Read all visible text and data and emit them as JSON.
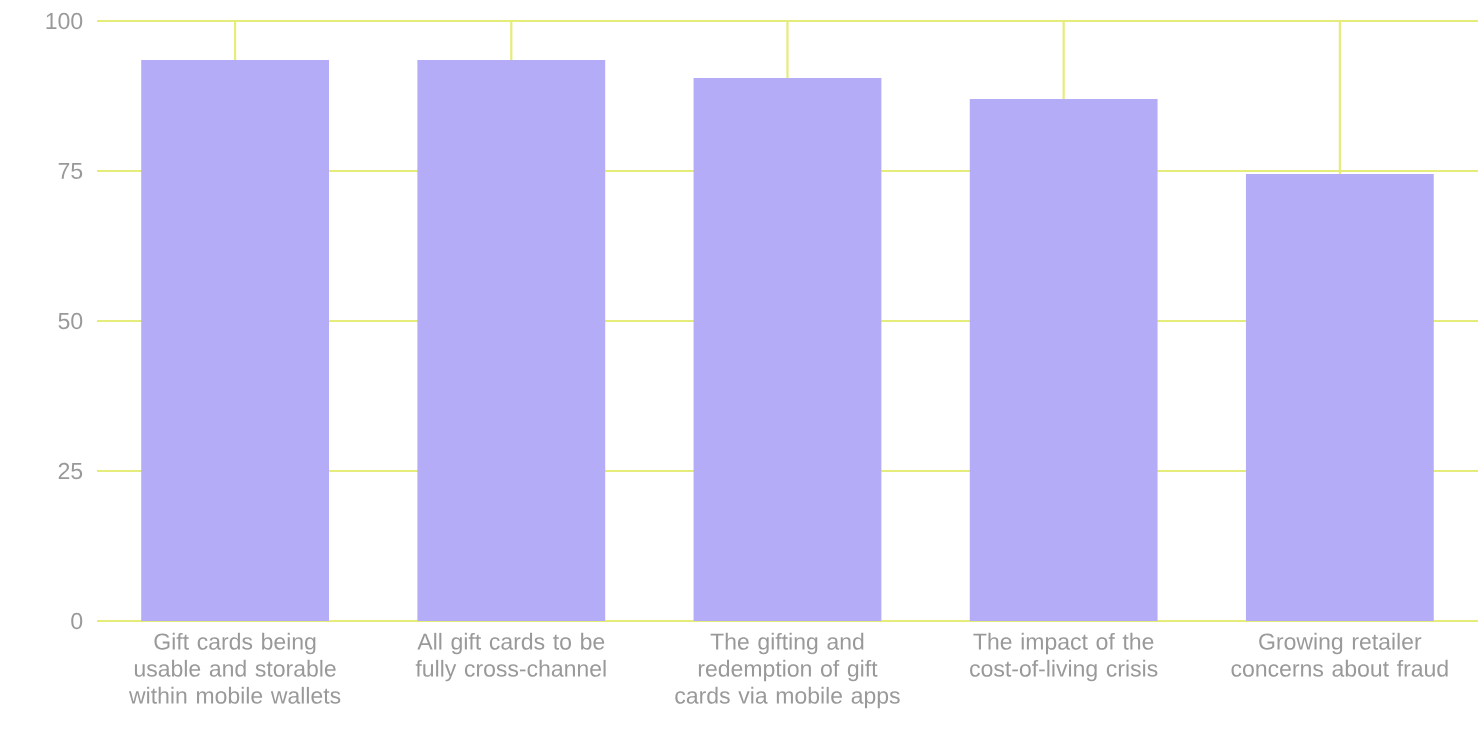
{
  "chart_data": {
    "type": "bar",
    "categories": [
      "Gift cards being usable and storable within mobile wallets",
      "All gift cards to be fully cross-channel",
      "The gifting and redemption of gift cards via mobile apps",
      "The impact of the cost-of-living crisis",
      "Growing retailer concerns about fraud"
    ],
    "values": [
      93.5,
      93.5,
      90.5,
      87,
      74.5
    ],
    "color": "#b5acf8",
    "ylim": [
      0,
      100
    ],
    "yticks": [
      0,
      25,
      50,
      75,
      100
    ],
    "grid": true
  }
}
